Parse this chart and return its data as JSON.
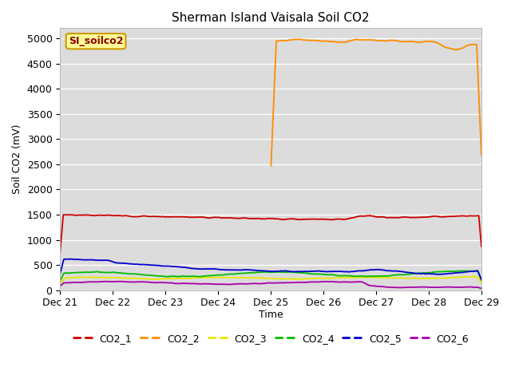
{
  "title": "Sherman Island Vaisala Soil CO2",
  "ylabel": "Soil CO2 (mV)",
  "xlabel": "Time",
  "ylim": [
    0,
    5200
  ],
  "yticks": [
    0,
    500,
    1000,
    1500,
    2000,
    2500,
    3000,
    3500,
    4000,
    4500,
    5000
  ],
  "xtick_labels": [
    "Dec 21",
    "Dec 22",
    "Dec 23",
    "Dec 24",
    "Dec 25",
    "Dec 26",
    "Dec 27",
    "Dec 28",
    "Dec 29"
  ],
  "background_color": "#dcdcdc",
  "fig_background": "#ffffff",
  "series_colors": {
    "CO2_1": "#cc0000",
    "CO2_2": "#ff8c00",
    "CO2_3": "#e8e800",
    "CO2_4": "#00bb00",
    "CO2_5": "#0000cc",
    "CO2_6": "#aa00aa"
  },
  "legend_label": "SI_soilco2",
  "legend_box_color": "#ffff99",
  "legend_box_edge": "#cc9900",
  "legend_text_color": "#880000"
}
